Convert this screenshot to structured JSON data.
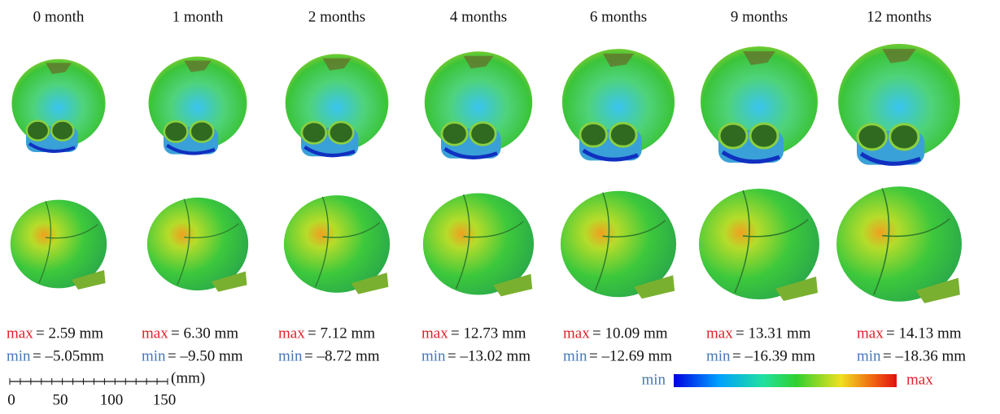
{
  "columns": [
    {
      "title": "0 month",
      "max_label": "max",
      "max_value": "= 2.59 mm",
      "min_label": "min",
      "min_value": "= –5.05mm"
    },
    {
      "title": "1 month",
      "max_label": "max",
      "max_value": "= 6.30 mm",
      "min_label": "min",
      "min_value": "= –9.50 mm"
    },
    {
      "title": "2 months",
      "max_label": "max",
      "max_value": "= 7.12 mm",
      "min_label": "min",
      "min_value": "= –8.72 mm"
    },
    {
      "title": "4 months",
      "max_label": "max",
      "max_value": "= 12.73 mm",
      "min_label": "min",
      "min_value": "= –13.02 mm"
    },
    {
      "title": "6 months",
      "max_label": "max",
      "max_value": "= 10.09 mm",
      "min_label": "min",
      "min_value": "= –12.69 mm"
    },
    {
      "title": "9 months",
      "max_label": "max",
      "max_value": "= 13.31 mm",
      "min_label": "min",
      "min_value": "= –16.39 mm"
    },
    {
      "title": "12 months",
      "max_label": "max",
      "max_value": "= 14.13 mm",
      "min_label": "min",
      "min_value": "= –18.36 mm"
    }
  ],
  "scale_bar": {
    "unit": "(mm)",
    "ticks": [
      "0",
      "50",
      "100",
      "150"
    ]
  },
  "colorbar": {
    "min_label": "min",
    "max_label": "max"
  }
}
